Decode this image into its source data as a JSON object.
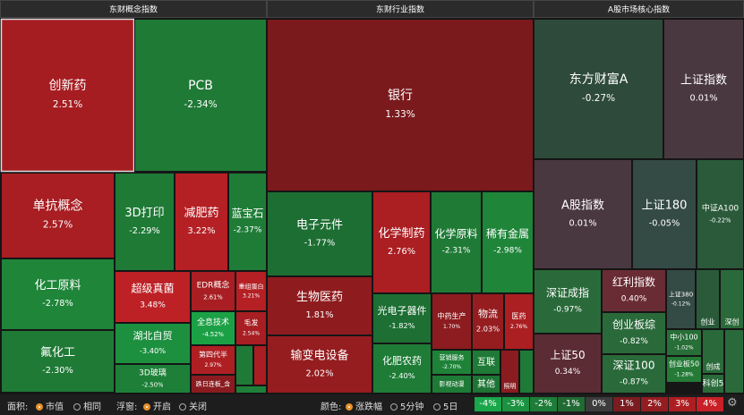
{
  "panels": [
    {
      "title": "东财概念指数",
      "tiles": [
        {
          "label": "创新药",
          "change": "2.51%",
          "color": "#a61d21"
        },
        {
          "label": "PCB",
          "change": "-2.34%",
          "color": "#1f7a36"
        },
        {
          "label": "单抗概念",
          "change": "2.57%",
          "color": "#a81e22"
        },
        {
          "label": "3D打印",
          "change": "-2.29%",
          "color": "#1f7a36"
        },
        {
          "label": "减肥药",
          "change": "3.22%",
          "color": "#b52025"
        },
        {
          "label": "蓝宝石",
          "change": "-2.37%",
          "color": "#1f7c37"
        },
        {
          "label": "化工原料",
          "change": "-2.78%",
          "color": "#1e8539"
        },
        {
          "label": "氟化工",
          "change": "-2.30%",
          "color": "#1f7a36"
        },
        {
          "label": "超级真菌",
          "change": "3.48%",
          "color": "#bd2126"
        },
        {
          "label": "EDR概念",
          "change": "2.61%",
          "color": "#a81e22"
        },
        {
          "label": "重组蛋白",
          "change": "3.21%",
          "color": "#b52025"
        },
        {
          "label": "湖北自贸",
          "change": "-3.40%",
          "color": "#1d9040"
        },
        {
          "label": "全息技术",
          "change": "-4.52%",
          "color": "#1ca046"
        },
        {
          "label": "毛发",
          "change": "2.54%",
          "color": "#a81e22"
        },
        {
          "label": "3D玻璃",
          "change": "-2.50%",
          "color": "#1e8038"
        },
        {
          "label": "第四代半",
          "change": "2.97%",
          "color": "#ae1f23"
        },
        {
          "label": "跌日连板_含",
          "color": "#8a1c20"
        }
      ]
    },
    {
      "title": "东财行业指数",
      "tiles": [
        {
          "label": "银行",
          "change": "1.33%",
          "color": "#7a1a1d"
        },
        {
          "label": "电子元件",
          "change": "-1.77%",
          "color": "#1d6e33"
        },
        {
          "label": "化学制药",
          "change": "2.76%",
          "color": "#ab1e22"
        },
        {
          "label": "化学原料",
          "change": "-2.31%",
          "color": "#1f7a36"
        },
        {
          "label": "稀有金属",
          "change": "-2.98%",
          "color": "#1e8539"
        },
        {
          "label": "生物医药",
          "change": "1.81%",
          "color": "#8e1c1f"
        },
        {
          "label": "输变电设备",
          "change": "2.02%",
          "color": "#951d20"
        },
        {
          "label": "光电子器件",
          "change": "-1.82%",
          "color": "#1d6f33"
        },
        {
          "label": "中药生产",
          "change": "1.70%",
          "color": "#8c1c1f"
        },
        {
          "label": "物流",
          "change": "2.03%",
          "color": "#951d20"
        },
        {
          "label": "医药",
          "change": "2.76%",
          "color": "#ab1e22"
        },
        {
          "label": "化肥农药",
          "change": "-2.40%",
          "color": "#1e7c37"
        },
        {
          "label": "营销服务",
          "change": "-2.70%",
          "color": "#1e8338"
        },
        {
          "label": "影视动漫",
          "color": "#1e7a36"
        },
        {
          "label": "互联",
          "color": "#1e7a36"
        },
        {
          "label": "其他",
          "color": "#1e7434"
        },
        {
          "label": "照明",
          "color": "#8a1c20"
        }
      ]
    },
    {
      "title": "A股市场核心指数",
      "tiles": [
        {
          "label": "东方财富A",
          "change": "-0.27%",
          "color": "#2e4a3b"
        },
        {
          "label": "上证指数",
          "change": "0.01%",
          "color": "#4a3840"
        },
        {
          "label": "A股指数",
          "change": "0.01%",
          "color": "#4a3840"
        },
        {
          "label": "上证180",
          "change": "-0.05%",
          "color": "#344a45"
        },
        {
          "label": "中证A100",
          "change": "-0.22%",
          "color": "#2b5a3b"
        },
        {
          "label": "深证成指",
          "change": "-0.97%",
          "color": "#2a6a3a"
        },
        {
          "label": "红利指数",
          "change": "0.40%",
          "color": "#6a2c34"
        },
        {
          "label": "上证380",
          "change": "-0.12%",
          "color": "#344a45"
        },
        {
          "label": "创业",
          "color": "#2a5a3a"
        },
        {
          "label": "深创",
          "color": "#2a6a3a"
        },
        {
          "label": "创业板综",
          "change": "-0.82%",
          "color": "#2a6a3a"
        },
        {
          "label": "上证50",
          "change": "0.34%",
          "color": "#5c2c34"
        },
        {
          "label": "深证100",
          "change": "-0.87%",
          "color": "#2a6a3a"
        },
        {
          "label": "中小100",
          "change": "-1.02%",
          "color": "#286e38"
        },
        {
          "label": "创业板50",
          "change": "-1.28%",
          "color": "#247a36"
        },
        {
          "label": "创成",
          "color": "#2a6a3a"
        },
        {
          "label": "科创5",
          "color": "#2a6a3a"
        }
      ]
    }
  ],
  "toolbar": {
    "area_label": "面积:",
    "area_options": [
      "市值",
      "相同"
    ],
    "float_label": "浮窗:",
    "float_options": [
      "开启",
      "关闭"
    ],
    "color_label": "颜色:",
    "color_options": [
      "涨跌幅",
      "5分钟",
      "5日"
    ],
    "legend": [
      {
        "label": "-4%",
        "color": "#1aa64a"
      },
      {
        "label": "-3%",
        "color": "#1b9241"
      },
      {
        "label": "-2%",
        "color": "#1d7d38"
      },
      {
        "label": "-1%",
        "color": "#226a34"
      },
      {
        "label": "0%",
        "color": "#3c3c3c"
      },
      {
        "label": "1%",
        "color": "#7a1c20"
      },
      {
        "label": "2%",
        "color": "#931d21"
      },
      {
        "label": "3%",
        "color": "#ad1e22"
      },
      {
        "label": "4%",
        "color": "#c82026"
      }
    ]
  }
}
